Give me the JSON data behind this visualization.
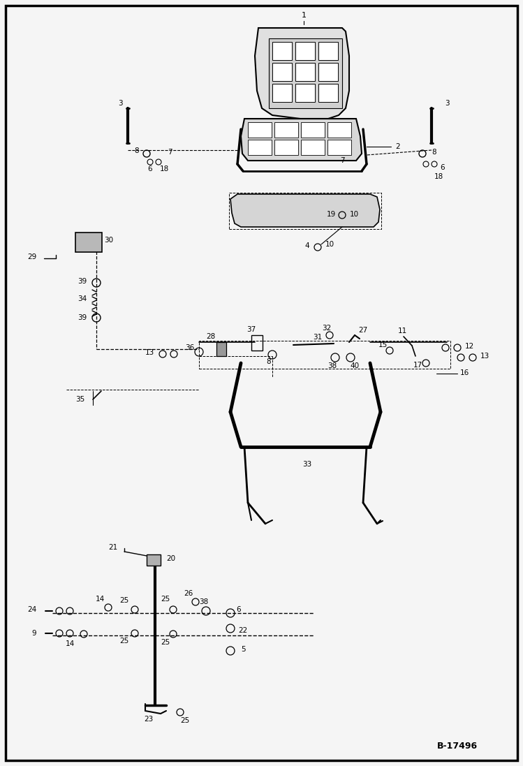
{
  "bg_color": "#f5f5f5",
  "border_color": "#000000",
  "line_color": "#000000",
  "text_color": "#000000",
  "figure_code": "B-17496",
  "figsize": [
    7.49,
    10.97
  ],
  "dpi": 100
}
